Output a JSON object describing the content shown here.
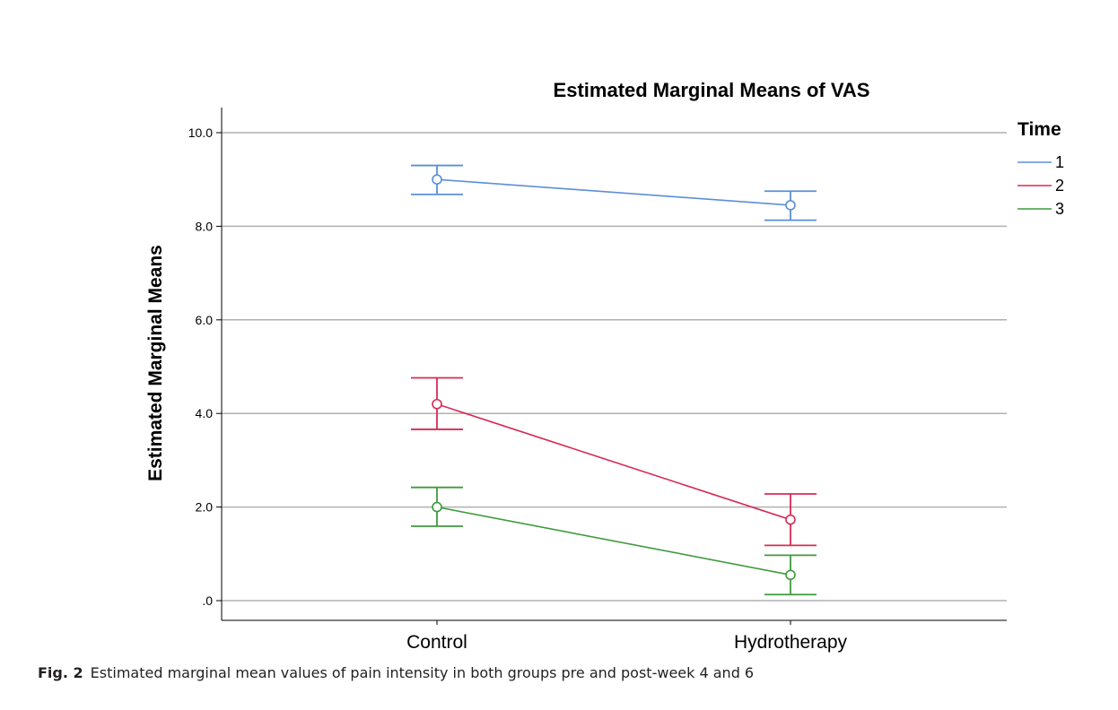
{
  "caption": {
    "label": "Fig. 2",
    "text": "Estimated marginal mean values of pain intensity in both groups pre and post-week 4 and 6"
  },
  "chart_data": {
    "type": "line",
    "title": "Estimated Marginal Means of VAS",
    "xlabel": "",
    "ylabel": "Estimated Marginal Means",
    "categories": [
      "Control",
      "Hydrotherapy"
    ],
    "ylim": [
      0,
      10.4
    ],
    "yticks": [
      0,
      2,
      4,
      6,
      8,
      10
    ],
    "ytick_labels": [
      ".0",
      "2.0",
      "4.0",
      "6.0",
      "8.0",
      "10.0"
    ],
    "grid": true,
    "legend_title": "Time",
    "legend_position": "top-right",
    "series": [
      {
        "name": "1",
        "color": "#5b8fd8",
        "values": [
          9.0,
          8.45
        ],
        "error_low": [
          8.68,
          8.13
        ],
        "error_high": [
          9.3,
          8.75
        ]
      },
      {
        "name": "2",
        "color": "#d62b55",
        "values": [
          4.2,
          1.73
        ],
        "error_low": [
          3.66,
          1.18
        ],
        "error_high": [
          4.76,
          2.28
        ]
      },
      {
        "name": "3",
        "color": "#3f9a3f",
        "values": [
          2.0,
          0.55
        ],
        "error_low": [
          1.59,
          0.13
        ],
        "error_high": [
          2.42,
          0.97
        ]
      }
    ]
  }
}
